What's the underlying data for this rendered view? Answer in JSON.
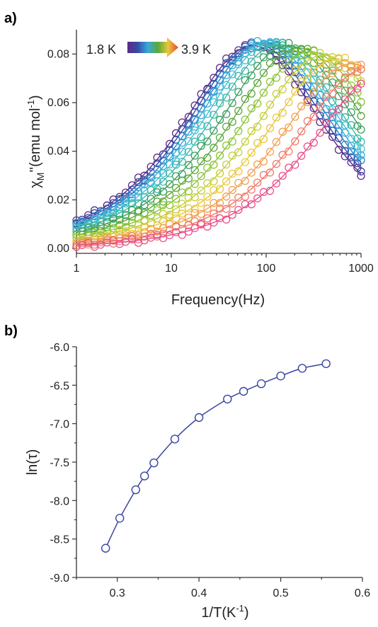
{
  "chart_data": [
    {
      "panel": "a)",
      "type": "scatter",
      "x_scale": "log",
      "xlabel": "Frequency(Hz)",
      "ylabel_main": "χ",
      "ylabel_sub": "M",
      "ylabel_rest": "''(emu mol",
      "ylabel_sup": "-1",
      "ylabel_close": ")",
      "xlim": [
        1,
        1000
      ],
      "ylim": [
        -0.002,
        0.09
      ],
      "x_tick_labels": [
        "1",
        "10",
        "100",
        "1000"
      ],
      "x_tick_values": [
        1,
        10,
        100,
        1000
      ],
      "y_tick_labels": [
        "0.00",
        "0.02",
        "0.04",
        "0.06",
        "0.08"
      ],
      "y_tick_values": [
        0.0,
        0.02,
        0.04,
        0.06,
        0.08
      ],
      "temp_start": "1.8 K",
      "temp_end": "3.9 K",
      "series_colors": [
        "#5b2a86",
        "#3a4aa8",
        "#2f7fc4",
        "#38a8d8",
        "#46c0d4",
        "#3fb8a8",
        "#3aa060",
        "#5aa83a",
        "#8cc43a",
        "#c4cf3a",
        "#e8c83a",
        "#f2a050",
        "#f07a6a",
        "#e8508a"
      ],
      "series_peak_freq": [
        72,
        80,
        90,
        100,
        115,
        135,
        170,
        220,
        290,
        400,
        560,
        800,
        1150,
        1700
      ],
      "series_peak_height": [
        0.0835,
        0.084,
        0.0845,
        0.085,
        0.0848,
        0.084,
        0.0835,
        0.0825,
        0.081,
        0.0795,
        0.078,
        0.076,
        0.074,
        0.072
      ],
      "series_width": 1.1,
      "x_points": [
        1,
        1.15,
        1.33,
        1.55,
        1.8,
        2.1,
        2.45,
        2.85,
        3.3,
        3.85,
        4.5,
        5.2,
        6.1,
        7.1,
        8.2,
        9.6,
        11.2,
        13,
        15.2,
        17.7,
        20.6,
        24,
        28,
        32.5,
        38,
        44,
        51,
        60,
        70,
        81,
        94,
        110,
        128,
        149,
        173,
        202,
        235,
        273,
        318,
        370,
        430,
        500,
        582,
        678,
        789,
        918,
        1000
      ]
    },
    {
      "panel": "b)",
      "type": "line",
      "xlabel_main": "1/T(K",
      "xlabel_sup": "-1",
      "xlabel_close": ")",
      "ylabel": "ln(τ)",
      "xlim": [
        0.25,
        0.6
      ],
      "ylim": [
        -9.0,
        -6.0
      ],
      "x_tick_labels": [
        "0.3",
        "0.4",
        "0.5",
        "0.6"
      ],
      "x_tick_values": [
        0.3,
        0.4,
        0.5,
        0.6
      ],
      "y_tick_labels": [
        "-6.0",
        "-6.5",
        "-7.0",
        "-7.5",
        "-8.0",
        "-8.5",
        "-9.0"
      ],
      "y_tick_values": [
        -6.0,
        -6.5,
        -7.0,
        -7.5,
        -8.0,
        -8.5,
        -9.0
      ],
      "color": "#3a44a0",
      "x": [
        0.2857,
        0.303,
        0.3226,
        0.3333,
        0.3448,
        0.3704,
        0.4,
        0.4348,
        0.4545,
        0.4762,
        0.5,
        0.5263,
        0.5556
      ],
      "y": [
        -8.62,
        -8.23,
        -7.86,
        -7.68,
        -7.51,
        -7.2,
        -6.92,
        -6.68,
        -6.58,
        -6.48,
        -6.38,
        -6.28,
        -6.22
      ]
    }
  ]
}
